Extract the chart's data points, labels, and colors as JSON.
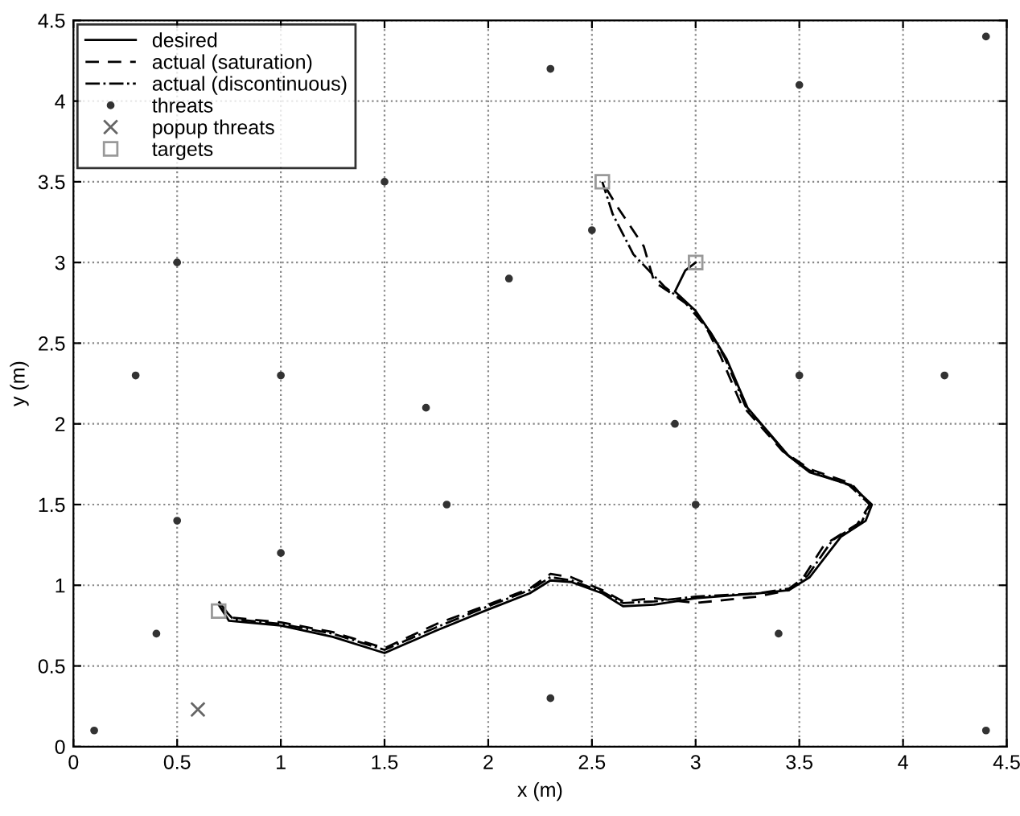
{
  "chart_data": {
    "type": "line",
    "xlabel": "x (m)",
    "ylabel": "y (m)",
    "xlim": [
      0,
      4.5
    ],
    "ylim": [
      0,
      4.5
    ],
    "xticks": [
      0,
      0.5,
      1,
      1.5,
      2,
      2.5,
      3,
      3.5,
      4,
      4.5
    ],
    "yticks": [
      0,
      0.5,
      1,
      1.5,
      2,
      2.5,
      3,
      3.5,
      4,
      4.5
    ],
    "grid": true,
    "legend": "top left",
    "series": [
      {
        "name": "desired",
        "line_style": "solid",
        "marker": "none",
        "color": "#000000",
        "x": [
          0.7,
          0.75,
          1.0,
          1.25,
          1.5,
          1.75,
          2.0,
          2.2,
          2.3,
          2.4,
          2.55,
          2.65,
          2.8,
          3.0,
          3.3,
          3.45,
          3.55,
          3.7,
          3.82,
          3.85,
          3.75,
          3.55,
          3.45,
          3.25,
          3.15,
          3.08,
          3.0,
          2.9,
          2.95,
          3.0
        ],
        "values": [
          0.88,
          0.78,
          0.75,
          0.68,
          0.58,
          0.72,
          0.85,
          0.95,
          1.03,
          1.02,
          0.95,
          0.87,
          0.88,
          0.92,
          0.95,
          0.97,
          1.05,
          1.3,
          1.4,
          1.5,
          1.62,
          1.7,
          1.8,
          2.1,
          2.4,
          2.55,
          2.7,
          2.82,
          2.95,
          3.0
        ]
      },
      {
        "name": "actual (saturation)",
        "line_style": "dashed",
        "marker": "none",
        "color": "#000000",
        "x": [
          0.7,
          0.76,
          1.0,
          1.25,
          1.5,
          1.75,
          2.0,
          2.2,
          2.3,
          2.4,
          2.55,
          2.65,
          2.8,
          3.0,
          3.3,
          3.45,
          3.52,
          3.62,
          3.78,
          3.84,
          3.75,
          3.55,
          3.42,
          3.22,
          3.12,
          3.05,
          2.95,
          2.8,
          2.75,
          2.62,
          2.55
        ],
        "values": [
          0.9,
          0.8,
          0.77,
          0.71,
          0.61,
          0.76,
          0.88,
          0.98,
          1.07,
          1.05,
          0.97,
          0.9,
          0.92,
          0.89,
          0.93,
          0.97,
          1.05,
          1.25,
          1.38,
          1.5,
          1.63,
          1.72,
          1.83,
          2.12,
          2.42,
          2.6,
          2.75,
          2.88,
          3.1,
          3.35,
          3.5
        ]
      },
      {
        "name": "actual (discontinuous)",
        "line_style": "dashdot",
        "marker": "none",
        "color": "#000000",
        "x": [
          0.72,
          0.77,
          1.0,
          1.25,
          1.5,
          1.75,
          2.0,
          2.2,
          2.3,
          2.4,
          2.55,
          2.65,
          2.8,
          3.0,
          3.3,
          3.45,
          3.54,
          3.66,
          3.8,
          3.84,
          3.74,
          3.55,
          3.44,
          3.24,
          3.14,
          3.07,
          2.97,
          2.85,
          2.7,
          2.6,
          2.55
        ],
        "values": [
          0.86,
          0.79,
          0.76,
          0.7,
          0.6,
          0.74,
          0.87,
          0.97,
          1.05,
          1.03,
          0.96,
          0.89,
          0.9,
          0.93,
          0.95,
          0.98,
          1.06,
          1.28,
          1.39,
          1.5,
          1.62,
          1.71,
          1.81,
          2.11,
          2.41,
          2.57,
          2.73,
          2.85,
          3.05,
          3.3,
          3.5
        ]
      },
      {
        "name": "threats",
        "type": "scatter",
        "marker": "circle",
        "color": "#333333",
        "x": [
          0.1,
          0.4,
          0.3,
          0.5,
          0.5,
          1.0,
          1.0,
          1.5,
          1.7,
          1.8,
          2.1,
          2.3,
          2.3,
          2.5,
          2.9,
          3.0,
          3.5,
          3.5,
          4.2,
          4.4,
          3.4,
          4.4
        ],
        "values": [
          0.1,
          0.7,
          2.3,
          1.4,
          3.0,
          1.2,
          2.3,
          3.5,
          2.1,
          1.5,
          2.9,
          4.2,
          0.3,
          3.2,
          2.0,
          1.5,
          4.1,
          2.3,
          2.3,
          4.4,
          0.7,
          0.1
        ]
      },
      {
        "name": "popup threats",
        "type": "scatter",
        "marker": "cross",
        "color": "#666666",
        "x": [
          0.6
        ],
        "values": [
          0.23
        ]
      },
      {
        "name": "targets",
        "type": "scatter",
        "marker": "square",
        "color": "#999999",
        "x": [
          0.7,
          2.55,
          3.0
        ],
        "values": [
          0.84,
          3.5,
          3.0
        ]
      }
    ]
  }
}
